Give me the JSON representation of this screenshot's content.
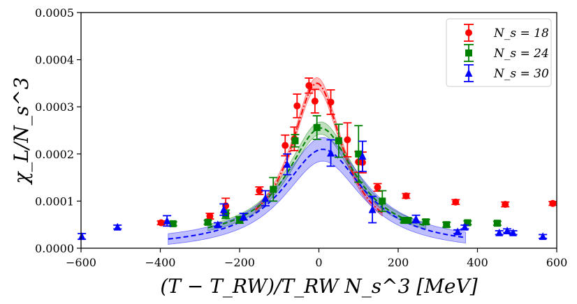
{
  "chart_data": {
    "type": "scatter",
    "xlabel": "(T − T_RW)/T_RW N_s^3 [MeV]",
    "ylabel": "χ_L/N_s^3",
    "xlim": [
      -600,
      600
    ],
    "ylim": [
      0.0,
      0.0005
    ],
    "x_ticks": [
      -600,
      -400,
      -200,
      0,
      200,
      400,
      600
    ],
    "y_ticks": [
      0.0,
      0.0001,
      0.0002,
      0.0003,
      0.0004,
      0.0005
    ],
    "x_tick_labels": [
      "−600",
      "−400",
      "−200",
      "0",
      "200",
      "400",
      "600"
    ],
    "y_tick_labels": [
      "0.0000",
      "0.0001",
      "0.0002",
      "0.0003",
      "0.0004",
      "0.0005"
    ],
    "legend_position": "top-right",
    "series": [
      {
        "name": "N_s = 18",
        "label_text": "N_s = 18",
        "color": "#ff0000",
        "marker": "circle",
        "x": [
          -398,
          -275,
          -235,
          -150,
          -85,
          -62,
          -55,
          -25,
          -10,
          30,
          72,
          100,
          110,
          148,
          220,
          345,
          470,
          590
        ],
        "y": [
          5.4e-05,
          6.8e-05,
          9e-05,
          0.000122,
          0.000218,
          0.000232,
          0.000302,
          0.000345,
          0.000312,
          0.00031,
          0.00023,
          0.000183,
          0.000182,
          0.000129,
          0.000111,
          9.8e-05,
          9.3e-05,
          9.5e-05
        ],
        "yerr": [
          4e-06,
          6e-06,
          1.6e-05,
          8e-06,
          2.2e-05,
          2.5e-05,
          2.5e-05,
          1.6e-05,
          2.5e-05,
          2.6e-05,
          3.6e-05,
          2.2e-05,
          2.2e-05,
          8e-06,
          5e-06,
          5e-06,
          5e-06,
          4e-06
        ]
      },
      {
        "name": "N_s = 24",
        "label_text": "N_s = 24",
        "color": "#008000",
        "marker": "square",
        "x": [
          -368,
          -280,
          -235,
          -200,
          -115,
          -60,
          -5,
          50,
          100,
          160,
          215,
          225,
          270,
          322,
          375,
          450
        ],
        "y": [
          5.2e-05,
          5.5e-05,
          7.2e-05,
          6e-05,
          0.000125,
          0.000228,
          0.000256,
          0.000228,
          0.0002,
          0.0001,
          5.9e-05,
          5.9e-05,
          5.6e-05,
          5e-05,
          5.4e-05,
          5.3e-05
        ],
        "yerr": [
          4e-06,
          4e-06,
          9e-06,
          7e-06,
          2.5e-05,
          1.3e-05,
          2.5e-05,
          3.5e-05,
          6e-05,
          2.2e-05,
          5e-06,
          5e-06,
          5e-06,
          5e-06,
          4e-06,
          4e-06
        ]
      },
      {
        "name": "N_s = 30",
        "label_text": "N_s = 30",
        "color": "#0000ff",
        "marker": "triangle",
        "x": [
          -598,
          -508,
          -383,
          -255,
          -240,
          -190,
          -135,
          -80,
          30,
          110,
          135,
          245,
          350,
          368,
          455,
          475,
          490,
          565
        ],
        "y": [
          2.5e-05,
          4.5e-05,
          5.8e-05,
          5e-05,
          8.2e-05,
          6.7e-05,
          0.000106,
          0.000178,
          0.000202,
          0.000195,
          8.2e-05,
          6.2e-05,
          3.5e-05,
          4.5e-05,
          3.3e-05,
          3.7e-05,
          3.3e-05,
          2.5e-05
        ],
        "yerr": [
          6e-06,
          4e-06,
          1.1e-05,
          4e-06,
          1.2e-05,
          7e-06,
          1.6e-05,
          2.2e-05,
          2.8e-05,
          3.2e-05,
          2.8e-05,
          8e-06,
          4e-06,
          4e-06,
          4e-06,
          4e-06,
          4e-06,
          4e-06
        ]
      }
    ],
    "fits": [
      {
        "name": "N_s = 18 fit",
        "color": "#ff0000",
        "x_range": [
          -160,
          160
        ],
        "center": -5,
        "peak": 0.00035,
        "width": 80,
        "baseline": 1e-05,
        "band": 1.2e-05,
        "dash": "dashdot"
      },
      {
        "name": "N_s = 24 fit",
        "color": "#008000",
        "x_range": [
          -280,
          270
        ],
        "center": 5,
        "peak": 0.000255,
        "width": 105,
        "baseline": 1.5e-05,
        "band": 1.3e-05,
        "dash": "dashed"
      },
      {
        "name": "N_s = 30 fit",
        "color": "#0000ff",
        "x_range": [
          -380,
          370
        ],
        "center": 10,
        "peak": 0.00021,
        "width": 125,
        "baseline": 0.0,
        "band": 2.5e-05,
        "dash": "dashed"
      }
    ]
  }
}
